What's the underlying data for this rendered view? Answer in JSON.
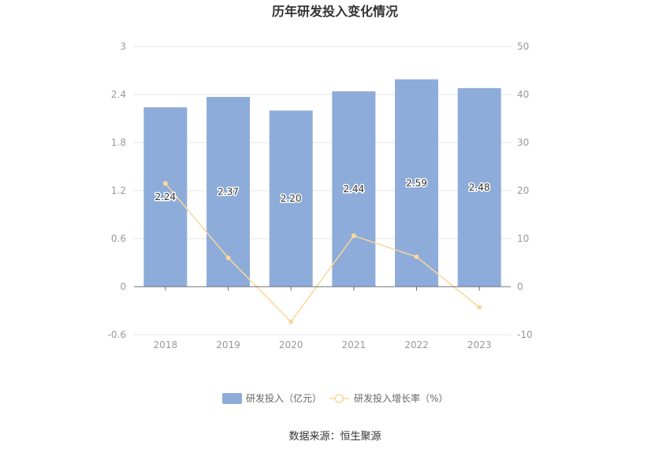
{
  "chart_data": {
    "type": "bar",
    "title": "历年研发投入变化情况",
    "categories": [
      "2018",
      "2019",
      "2020",
      "2021",
      "2022",
      "2023"
    ],
    "series": [
      {
        "name": "研发投入（亿元）",
        "type": "bar",
        "axis": "left",
        "values": [
          2.24,
          2.37,
          2.2,
          2.44,
          2.59,
          2.48
        ],
        "labels": [
          "2.24",
          "2.37",
          "2.20",
          "2.44",
          "2.59",
          "2.48"
        ],
        "color": "#8eacd9"
      },
      {
        "name": "研发投入增长率（%）",
        "type": "line",
        "axis": "right",
        "values": [
          21.5,
          6.0,
          -7.3,
          10.6,
          6.2,
          -4.3
        ],
        "color": "#f9d79b"
      }
    ],
    "left_axis": {
      "min": -0.6,
      "max": 3,
      "ticks": [
        "-0.6",
        "0",
        "0.6",
        "1.2",
        "1.8",
        "2.4",
        "3"
      ]
    },
    "right_axis": {
      "min": -10,
      "max": 50,
      "ticks": [
        "-10",
        "0",
        "10",
        "20",
        "30",
        "40",
        "50"
      ]
    },
    "grid": true,
    "legend_position": "bottom-center",
    "source": "数据来源：恒生聚源"
  }
}
